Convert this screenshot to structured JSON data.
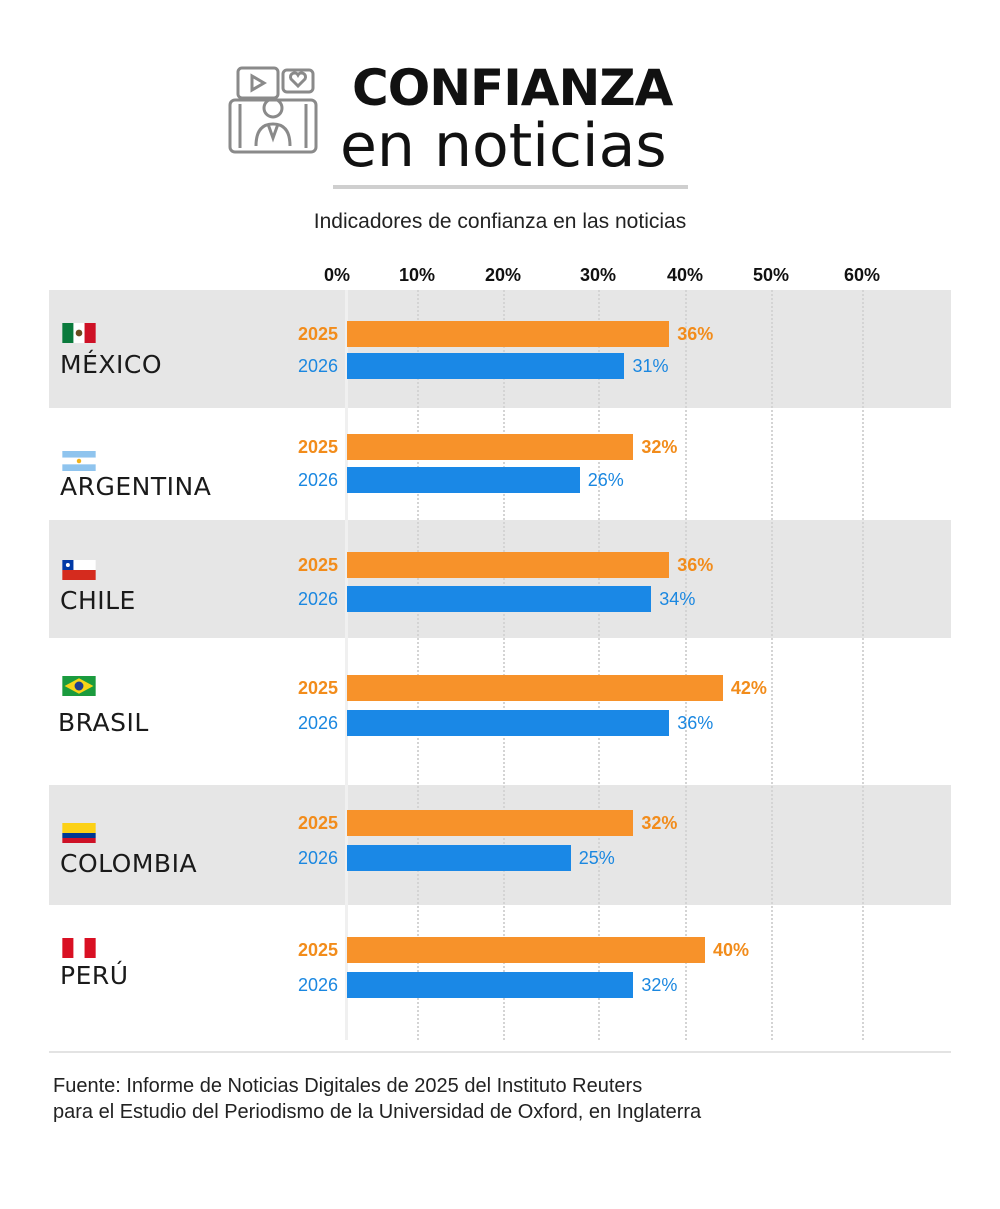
{
  "header": {
    "icon": "news-video-screen-icon",
    "title_line1": "CONFIANZA",
    "title_line2": "en noticias"
  },
  "chart_data": {
    "type": "bar",
    "orientation": "horizontal",
    "title": "Indicadores de confianza en las noticias",
    "xlim": [
      0,
      60
    ],
    "ticks": [
      0,
      10,
      20,
      30,
      40,
      50,
      60
    ],
    "tick_labels": [
      "0%",
      "10%",
      "20%",
      "30%",
      "40%",
      "50%",
      "60%"
    ],
    "grid": "vertical dotted",
    "categories": [
      "MÉXICO",
      "ARGENTINA",
      "CHILE",
      "BRASIL",
      "COLOMBIA",
      "PERÚ"
    ],
    "flags": [
      "mexico-flag-icon",
      "argentina-flag-icon",
      "chile-flag-icon",
      "brazil-flag-icon",
      "colombia-flag-icon",
      "peru-flag-icon"
    ],
    "series": [
      {
        "name": "2025",
        "color": "#f7922a",
        "values": [
          36,
          32,
          36,
          42,
          32,
          40
        ],
        "labels": [
          "36%",
          "32%",
          "36%",
          "42%",
          "32%",
          "40%"
        ]
      },
      {
        "name": "2026",
        "color": "#1a88e6",
        "values": [
          31,
          26,
          34,
          36,
          25,
          32
        ],
        "labels": [
          "31%",
          "26%",
          "34%",
          "36%",
          "25%",
          "32%"
        ]
      }
    ]
  },
  "footer": {
    "source_line1": "Fuente: Informe de Noticias Digitales de 2025 del Instituto Reuters",
    "source_line2": "para el Estudio del Periodismo de la Universidad de Oxford, en Inglaterra"
  }
}
